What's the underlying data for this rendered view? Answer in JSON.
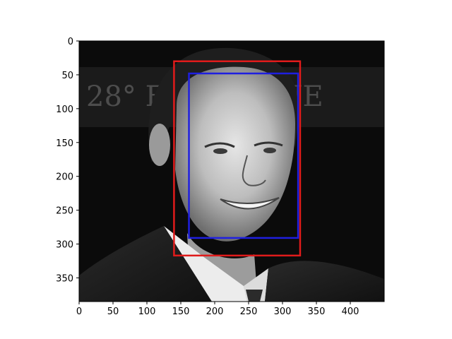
{
  "chart_data": {
    "type": "image",
    "xlim": [
      0,
      450
    ],
    "ylim": [
      385,
      0
    ],
    "x_ticks": [
      "0",
      "50",
      "100",
      "150",
      "200",
      "250",
      "300",
      "350",
      "400"
    ],
    "y_ticks": [
      "0",
      "50",
      "100",
      "150",
      "200",
      "250",
      "300",
      "350"
    ],
    "x_tick_values": [
      0,
      50,
      100,
      150,
      200,
      250,
      300,
      350,
      400
    ],
    "y_tick_values": [
      0,
      50,
      100,
      150,
      200,
      250,
      300,
      350
    ],
    "boxes": [
      {
        "color": "#e01b1b",
        "x0": 140,
        "y0": 30,
        "x1": 326,
        "y1": 317
      },
      {
        "color": "#1f1fe0",
        "x0": 162,
        "y0": 48,
        "x1": 323,
        "y1": 291
      }
    ],
    "background_text": "28° FE...U CINE"
  }
}
